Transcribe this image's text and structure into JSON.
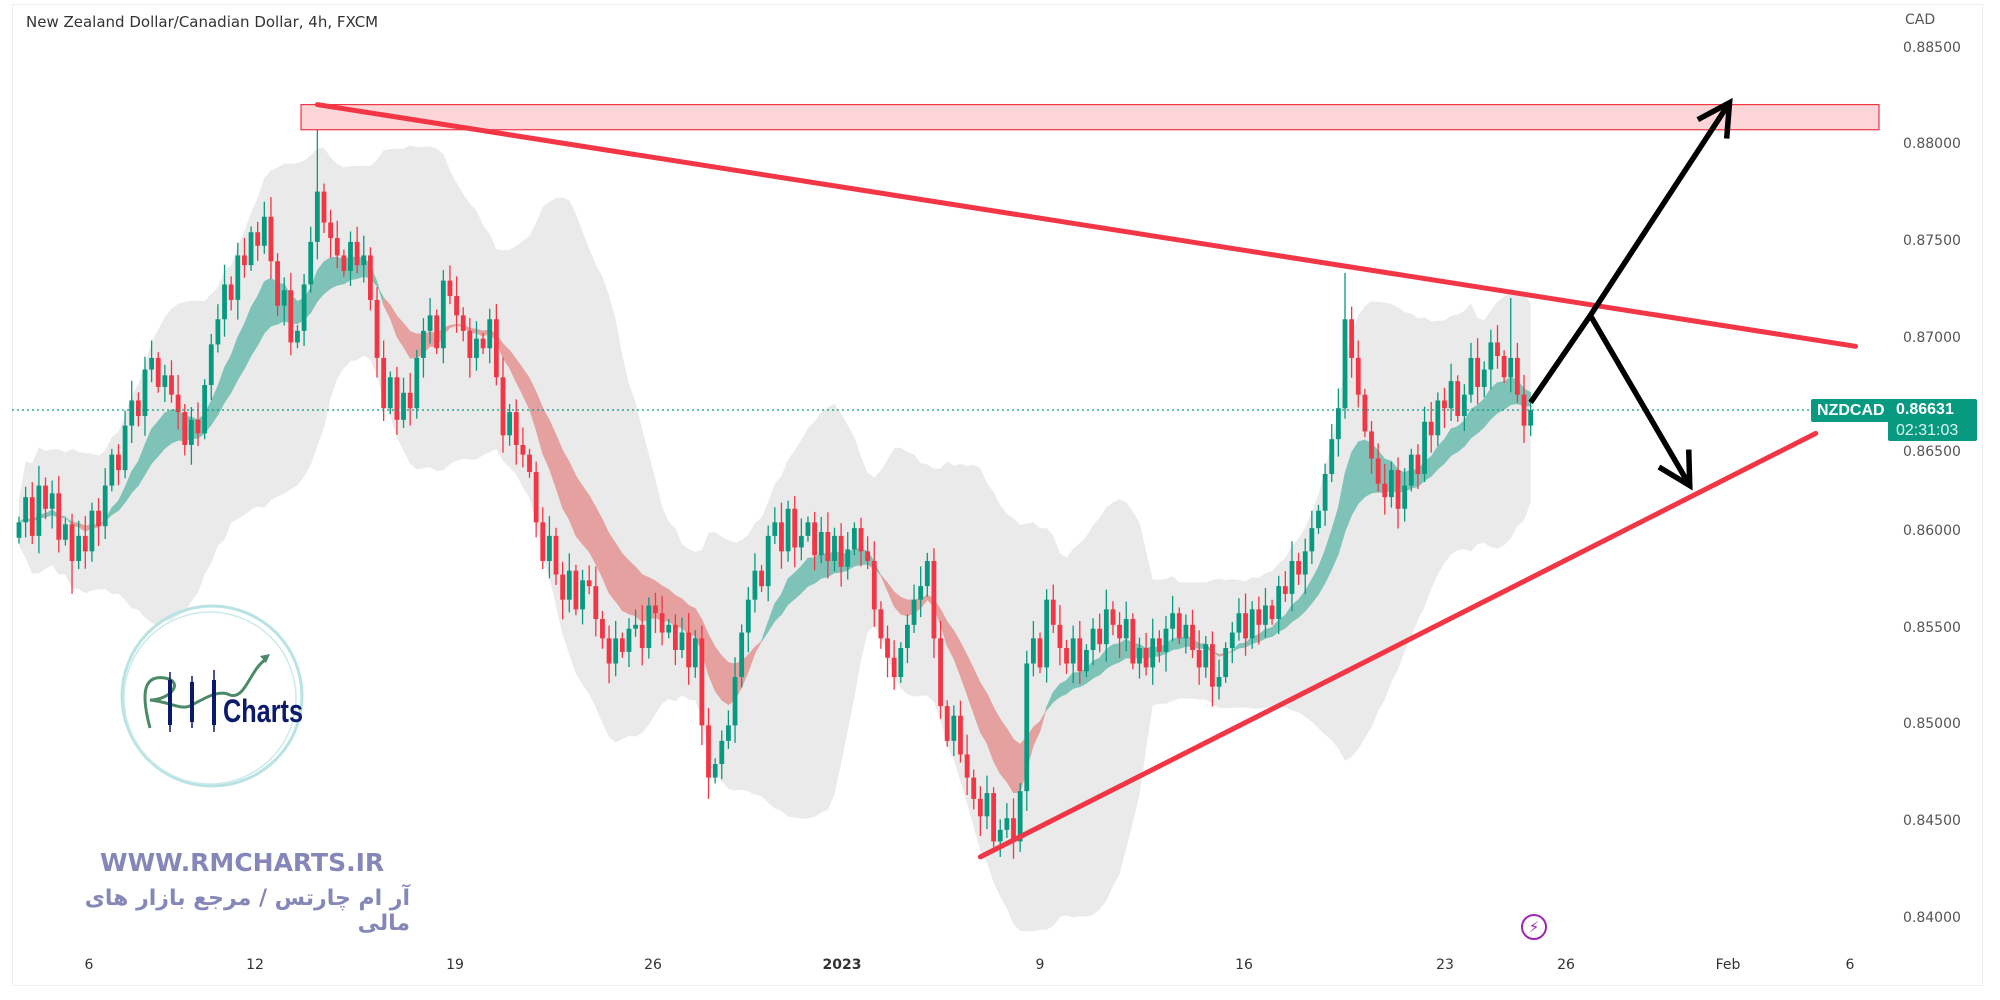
{
  "header": {
    "title": "New Zealand Dollar/Canadian Dollar, 4h, FXCM"
  },
  "price_axis": {
    "currency": "CAD",
    "labels": [
      "0.88500",
      "0.88000",
      "0.87500",
      "0.87000",
      "0.86500",
      "0.86000",
      "0.85500",
      "0.85000",
      "0.84500",
      "0.84000"
    ]
  },
  "time_axis": {
    "labels": [
      "6",
      "12",
      "19",
      "26",
      "2023",
      "9",
      "16",
      "23",
      "26",
      "Feb",
      "6"
    ]
  },
  "last_price": {
    "symbol": "NZDCAD",
    "price": "0.86631",
    "countdown": "02:31:03"
  },
  "watermark": {
    "logo_text": "RM Charts",
    "website": "WWW.RMCHARTS.IR",
    "tagline": "آر ام چارتس / مرجع بازار های مالی"
  },
  "colors": {
    "up": "#089981",
    "down": "#f23645",
    "trendline": "#f23645",
    "zone_fill": "#fcd5d8",
    "arrows": "#000000",
    "ribbon_up": "#7fc3b8",
    "ribbon_down": "#e5a19f",
    "envelope": "#e3e3e3",
    "badge": "#089981"
  },
  "chart_data": {
    "type": "candlestick",
    "symbol": "NZDCAD",
    "timeframe": "4h",
    "ylim": [
      0.8385,
      0.8875
    ],
    "grid": false,
    "close": [
      0.8605,
      0.8618,
      0.8598,
      0.8624,
      0.8612,
      0.862,
      0.8596,
      0.8604,
      0.8585,
      0.8598,
      0.859,
      0.8611,
      0.8603,
      0.8624,
      0.864,
      0.8632,
      0.8655,
      0.8668,
      0.866,
      0.8684,
      0.869,
      0.8675,
      0.8681,
      0.8671,
      0.8662,
      0.8645,
      0.8658,
      0.8651,
      0.8676,
      0.8697,
      0.871,
      0.8728,
      0.872,
      0.8743,
      0.8738,
      0.8755,
      0.8748,
      0.8763,
      0.874,
      0.8717,
      0.8725,
      0.8698,
      0.8704,
      0.8728,
      0.875,
      0.8776,
      0.876,
      0.8752,
      0.8743,
      0.8735,
      0.875,
      0.8738,
      0.8743,
      0.872,
      0.869,
      0.8664,
      0.868,
      0.8658,
      0.8672,
      0.8664,
      0.869,
      0.8704,
      0.8712,
      0.8695,
      0.873,
      0.8722,
      0.8712,
      0.8704,
      0.869,
      0.87,
      0.8695,
      0.871,
      0.868,
      0.865,
      0.8662,
      0.8645,
      0.864,
      0.8631,
      0.8605,
      0.8585,
      0.8598,
      0.8578,
      0.8565,
      0.858,
      0.856,
      0.8575,
      0.8572,
      0.8555,
      0.8545,
      0.8532,
      0.8545,
      0.8538,
      0.855,
      0.8552,
      0.854,
      0.8562,
      0.8558,
      0.8548,
      0.8552,
      0.8539,
      0.8548,
      0.853,
      0.8545,
      0.85,
      0.8473,
      0.848,
      0.8492,
      0.85,
      0.8525,
      0.8548,
      0.8565,
      0.858,
      0.8572,
      0.8598,
      0.8605,
      0.859,
      0.8612,
      0.8592,
      0.8598,
      0.8605,
      0.8588,
      0.86,
      0.8585,
      0.8598,
      0.8582,
      0.8591,
      0.8602,
      0.859,
      0.8585,
      0.856,
      0.8545,
      0.8535,
      0.8525,
      0.854,
      0.8552,
      0.8565,
      0.8572,
      0.8585,
      0.8545,
      0.851,
      0.8492,
      0.8505,
      0.8485,
      0.8473,
      0.8462,
      0.8453,
      0.8465,
      0.844,
      0.8446,
      0.8452,
      0.844,
      0.8466,
      0.8532,
      0.8545,
      0.853,
      0.8565,
      0.8552,
      0.854,
      0.8532,
      0.8545,
      0.8528,
      0.8539,
      0.855,
      0.8542,
      0.856,
      0.8552,
      0.8545,
      0.8555,
      0.8532,
      0.854,
      0.853,
      0.8545,
      0.8538,
      0.855,
      0.8558,
      0.8545,
      0.8552,
      0.8539,
      0.853,
      0.8542,
      0.852,
      0.8525,
      0.854,
      0.8548,
      0.8558,
      0.8545,
      0.856,
      0.8552,
      0.8562,
      0.8555,
      0.8572,
      0.8568,
      0.8585,
      0.8578,
      0.859,
      0.8602,
      0.8611,
      0.863,
      0.8648,
      0.8664,
      0.871,
      0.869,
      0.8671,
      0.8652,
      0.8638,
      0.8625,
      0.8618,
      0.8632,
      0.8612,
      0.8624,
      0.864,
      0.863,
      0.8657,
      0.865,
      0.8668,
      0.8664,
      0.8678,
      0.866,
      0.8671,
      0.869,
      0.8675,
      0.8684,
      0.8698,
      0.8691,
      0.868,
      0.869,
      0.8671,
      0.8655,
      0.8663
    ],
    "notable_highs": {
      "45": 0.8821,
      "200": 0.8734,
      "225": 0.8721
    },
    "notable_lows": {
      "104": 0.8462,
      "148": 0.8432,
      "8": 0.8568
    },
    "last_price": 0.86631,
    "drawings": {
      "resistance_zone": {
        "price_top": 0.8821,
        "price_bottom": 0.8808
      },
      "descending_trendline": {
        "from_bar": 45,
        "from_price": 0.8821,
        "to_bar": 277,
        "to_price": 0.8696
      },
      "ascending_trendline": {
        "from_bar": 145,
        "from_price": 0.8432,
        "to_bar": 271,
        "to_price": 0.8651
      },
      "scenario_arrows": [
        {
          "points": [
            [
              228,
              0.8667
            ],
            [
              237,
              0.8712
            ],
            [
              258,
              0.8822
            ]
          ]
        },
        {
          "points": [
            [
              237,
              0.8712
            ],
            [
              252,
              0.8624
            ]
          ]
        }
      ]
    }
  }
}
